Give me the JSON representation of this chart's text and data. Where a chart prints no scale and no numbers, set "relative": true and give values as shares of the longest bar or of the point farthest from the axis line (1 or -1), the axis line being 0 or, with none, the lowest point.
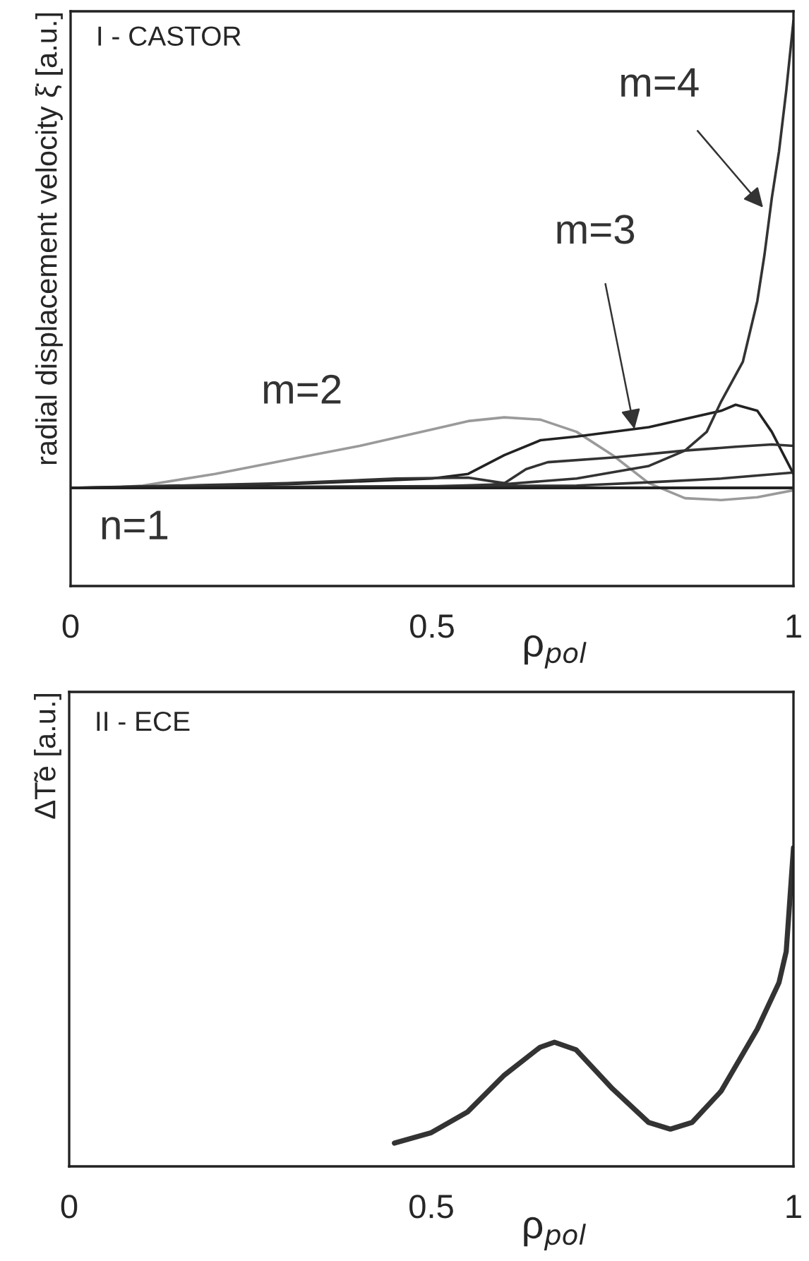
{
  "chart_data": [
    {
      "type": "line",
      "title": "I - CASTOR",
      "xlabel": "ρ$_{pol}$",
      "ylabel": "radial displacement velocity ξ̇ [a.u.]",
      "relative": true,
      "xlim": [
        0,
        1
      ],
      "xticks": [
        0,
        0.5,
        1
      ],
      "tick_labels": "x",
      "grid": false,
      "legend": false,
      "ref_lines": [
        {
          "axis": "y",
          "value": 0,
          "color": "#222222"
        }
      ],
      "series": [
        {
          "color": "#9a9a9a",
          "x": [
            0,
            0.05,
            0.1,
            0.2,
            0.3,
            0.4,
            0.5,
            0.55,
            0.6,
            0.65,
            0.7,
            0.75,
            0.8,
            0.85,
            0.9,
            0.95,
            1.0
          ],
          "values": [
            0,
            0,
            0.005,
            0.03,
            0.06,
            0.09,
            0.125,
            0.143,
            0.151,
            0.146,
            0.12,
            0.07,
            0.01,
            -0.022,
            -0.026,
            -0.02,
            -0.005
          ]
        },
        {
          "color": "#222222",
          "x": [
            0,
            0.3,
            0.5,
            0.55,
            0.6,
            0.65,
            0.7,
            0.8,
            0.9,
            0.92,
            0.95,
            0.97,
            0.99,
            1.0
          ],
          "values": [
            0,
            0.008,
            0.02,
            0.03,
            0.07,
            0.102,
            0.11,
            0.13,
            0.165,
            0.178,
            0.165,
            0.12,
            0.06,
            0.03
          ]
        },
        {
          "color": "#333333",
          "x": [
            0,
            0.5,
            0.6,
            0.7,
            0.8,
            0.85,
            0.88,
            0.9,
            0.93,
            0.95,
            0.96,
            0.97,
            0.98,
            0.99,
            1.0
          ],
          "values": [
            0,
            0.003,
            0.008,
            0.02,
            0.047,
            0.08,
            0.12,
            0.185,
            0.27,
            0.4,
            0.5,
            0.62,
            0.72,
            0.85,
            1.0
          ]
        },
        {
          "color": "#333333",
          "x": [
            0,
            0.55,
            0.6,
            0.63,
            0.66,
            0.75,
            0.85,
            0.92,
            0.97,
            1.0
          ],
          "values": [
            0,
            0,
            0.01,
            0.04,
            0.055,
            0.065,
            0.08,
            0.088,
            0.093,
            0.09
          ]
        },
        {
          "color": "#333333",
          "x": [
            0,
            0.7,
            0.8,
            0.9,
            1.0
          ],
          "values": [
            0,
            0.005,
            0.012,
            0.02,
            0.033
          ]
        },
        {
          "color": "#333333",
          "x": [
            0,
            0.3,
            0.45,
            0.55,
            0.6,
            0.63,
            1.0
          ],
          "values": [
            0,
            0.01,
            0.02,
            0.022,
            0.01,
            0,
            0
          ]
        }
      ],
      "annotations": [
        {
          "text": "m=4",
          "x": 0.958,
          "y": 0.6
        },
        {
          "text": "m=3",
          "x": 0.78,
          "y": 0.126
        },
        {
          "text": "m=2",
          "x": 0.32,
          "y": 0.065
        },
        "n=1"
      ]
    },
    {
      "type": "line",
      "title": "II - ECE",
      "xlabel": "ρ$_{pol}$",
      "ylabel": "ΔT̃e [a.u.]",
      "relative": true,
      "xlim": [
        0,
        1
      ],
      "xticks": [
        0,
        0.5,
        1
      ],
      "tick_labels": "x",
      "grid": false,
      "legend": false,
      "series": [
        {
          "color": "#333333",
          "x": [
            0.449,
            0.5,
            0.55,
            0.6,
            0.65,
            0.67,
            0.7,
            0.75,
            0.8,
            0.83,
            0.86,
            0.9,
            0.95,
            0.98,
            0.99,
            1.0
          ],
          "values": [
            0.073,
            0.106,
            0.171,
            0.285,
            0.374,
            0.39,
            0.366,
            0.244,
            0.138,
            0.117,
            0.138,
            0.236,
            0.431,
            0.577,
            0.675,
            1.0
          ]
        }
      ]
    }
  ]
}
